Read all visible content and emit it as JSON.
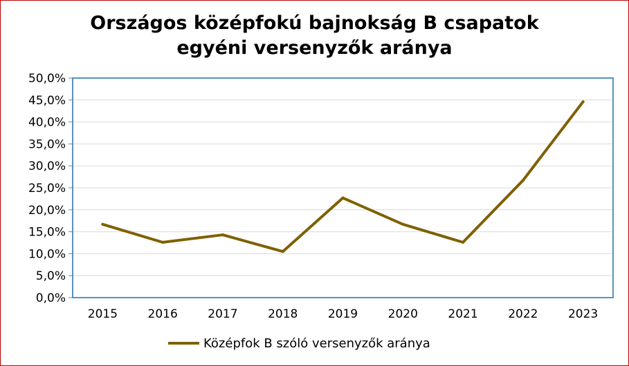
{
  "chart_data": {
    "type": "line",
    "title_lines": [
      "Országos középfokú bajnokság B csapatok",
      "egyéni versenyzők aránya"
    ],
    "categories": [
      "2015",
      "2016",
      "2017",
      "2018",
      "2019",
      "2020",
      "2021",
      "2022",
      "2023"
    ],
    "series": [
      {
        "name": "Középfok B szóló versenyzők aránya",
        "values": [
          16.7,
          12.6,
          14.3,
          10.5,
          22.7,
          16.7,
          12.6,
          26.7,
          44.6
        ],
        "color": "#7f6000"
      }
    ],
    "yticks": [
      "0,0%",
      "5,0%",
      "10,0%",
      "15,0%",
      "20,0%",
      "25,0%",
      "30,0%",
      "35,0%",
      "40,0%",
      "45,0%",
      "50,0%"
    ],
    "ylim": [
      0,
      50
    ],
    "grid": true,
    "legend": "bottom",
    "colors": {
      "border": "#c00000",
      "plot_border": "#1f6fa8",
      "grid": "#d9d9d9"
    }
  }
}
